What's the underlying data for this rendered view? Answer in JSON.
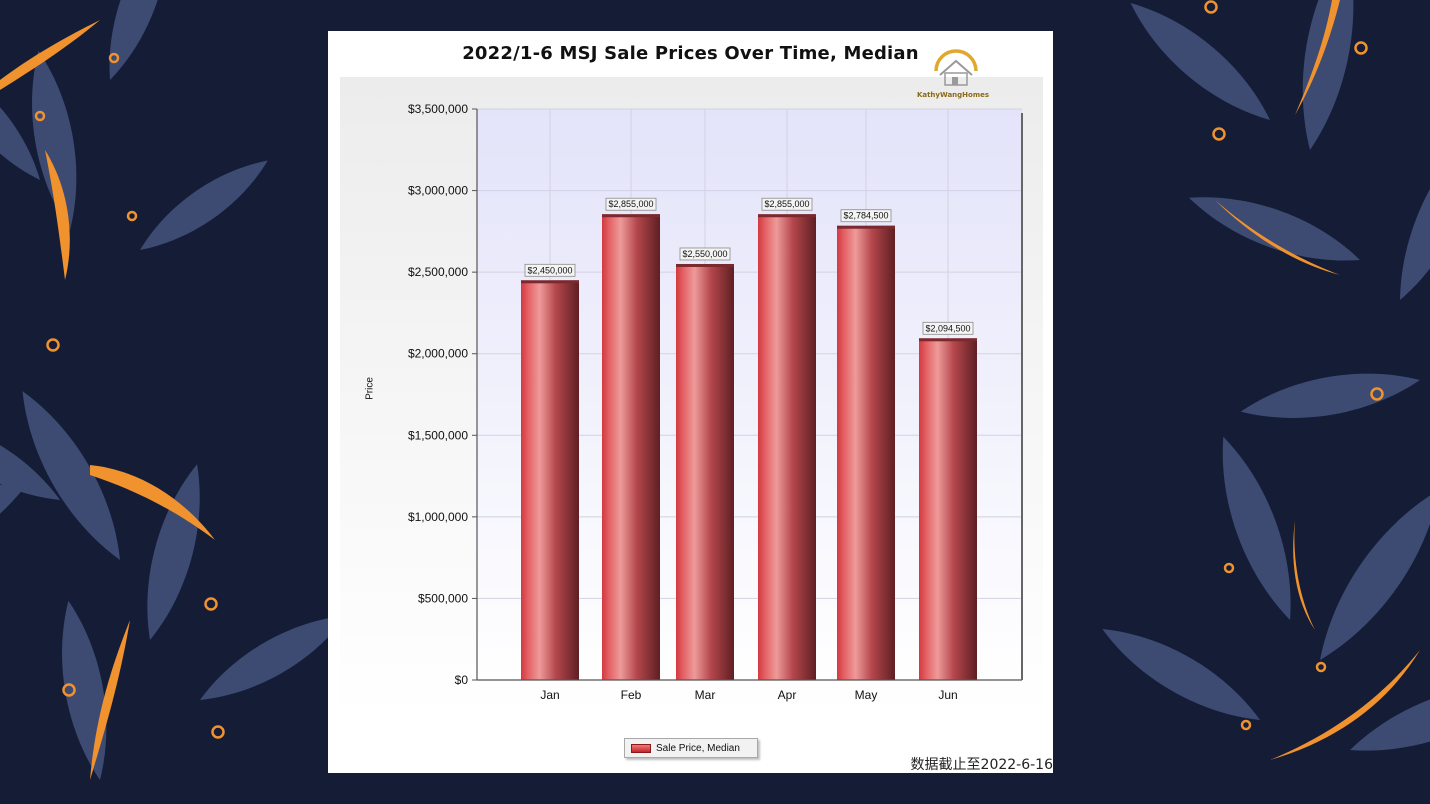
{
  "chart_data": {
    "type": "bar",
    "title": "2022/1-6 MSJ Sale Prices Over Time, Median",
    "xlabel": "",
    "ylabel": "Price",
    "categories": [
      "Jan",
      "Feb",
      "Mar",
      "Apr",
      "May",
      "Jun"
    ],
    "series": [
      {
        "name": "Sale Price, Median",
        "values": [
          2450000,
          2855000,
          2550000,
          2855000,
          2784500,
          2094500
        ],
        "data_labels": [
          "$2,450,000",
          "$2,855,000",
          "$2,550,000",
          "$2,855,000",
          "$2,784,500",
          "$2,094,500"
        ],
        "color": "#d9474b"
      }
    ],
    "ylim": [
      0,
      3500000
    ],
    "y_ticks": [
      "$0",
      "$500,000",
      "$1,000,000",
      "$1,500,000",
      "$2,000,000",
      "$2,500,000",
      "$3,000,000",
      "$3,500,000"
    ],
    "grid": true,
    "legend_position": "bottom-center"
  },
  "logo": {
    "text": "KathyWangHomes",
    "icon": "house-logo-icon",
    "color": "#e0a82e"
  },
  "footnote": "数据截止至2022-6-16",
  "colors": {
    "background": "#141c36",
    "leaf": "#3d4a72",
    "accent": "#f0922e"
  }
}
